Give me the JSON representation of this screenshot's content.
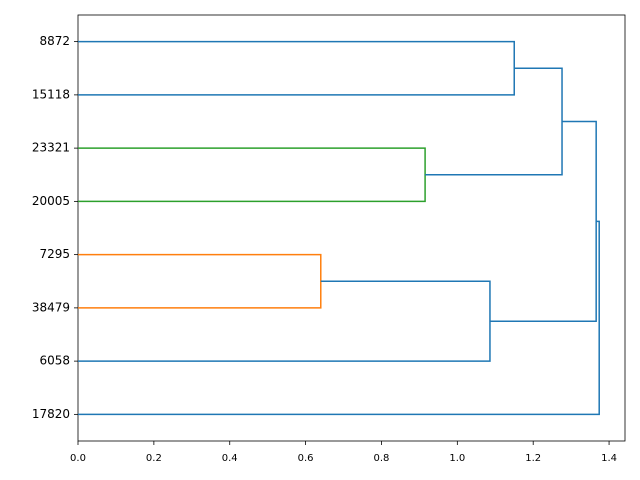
{
  "chart_data": {
    "type": "dendrogram",
    "leaves": [
      "8872",
      "15118",
      "23321",
      "20005",
      "7295",
      "38479",
      "6058",
      "17820"
    ],
    "merges": [
      {
        "children": [
          4,
          5
        ],
        "height": 0.64,
        "color": "#ff7f0e"
      },
      {
        "children": [
          2,
          3
        ],
        "height": 0.915,
        "color": "#2ca02c"
      },
      {
        "children": [
          8,
          6
        ],
        "height": 1.086,
        "color": "#1f77b4"
      },
      {
        "children": [
          0,
          1
        ],
        "height": 1.15,
        "color": "#1f77b4"
      },
      {
        "children": [
          11,
          9
        ],
        "height": 1.276,
        "color": "#1f77b4"
      },
      {
        "children": [
          12,
          10
        ],
        "height": 1.366,
        "color": "#1f77b4"
      },
      {
        "children": [
          13,
          7
        ],
        "height": 1.374,
        "color": "#1f77b4"
      }
    ],
    "xlim": [
      0,
      1.442
    ],
    "xticks": [
      {
        "value": 0,
        "label": "0.0"
      },
      {
        "value": 0.2,
        "label": "0.2"
      },
      {
        "value": 0.4,
        "label": "0.4"
      },
      {
        "value": 0.6,
        "label": "0.6"
      },
      {
        "value": 0.8,
        "label": "0.8"
      },
      {
        "value": 1,
        "label": "1.0"
      },
      {
        "value": 1.2,
        "label": "1.2"
      },
      {
        "value": 1.4,
        "label": "1.4"
      }
    ]
  }
}
